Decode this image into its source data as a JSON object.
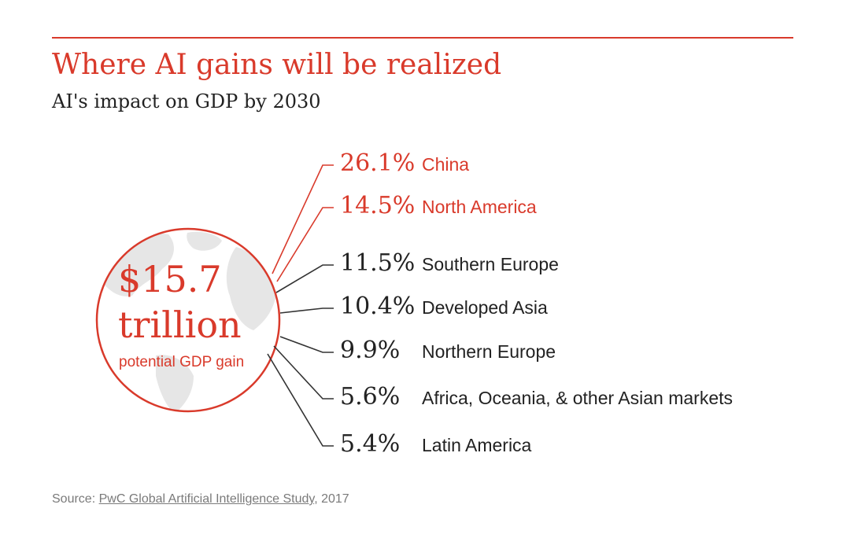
{
  "header": {
    "title": "Where AI gains will be realized",
    "subtitle": "AI's impact on GDP by 2030"
  },
  "globe": {
    "value": "$15.7",
    "unit": "trillion",
    "caption": "potential GDP gain"
  },
  "footer": {
    "prefix": "Source: ",
    "link_text": "PwC Global Artificial Intelligence Study",
    "suffix": ", 2017"
  },
  "colors": {
    "accent": "#d93a2b",
    "dark": "#333333",
    "text": "#222222",
    "muted": "#7a7a7a",
    "globe_land": "#e6e6e6"
  },
  "chart_data": {
    "type": "table",
    "title": "Where AI gains will be realized",
    "subtitle": "AI's impact on GDP by 2030",
    "total": "$15.7 trillion potential GDP gain",
    "categories": [
      "China",
      "North America",
      "Southern Europe",
      "Developed Asia",
      "Northern Europe",
      "Africa, Oceania, & other Asian markets",
      "Latin America"
    ],
    "values": [
      26.1,
      14.5,
      11.5,
      10.4,
      9.9,
      5.6,
      5.4
    ],
    "rows": [
      {
        "value_label": "26.1%",
        "region": "China",
        "highlight": true
      },
      {
        "value_label": "14.5%",
        "region": "North America",
        "highlight": true
      },
      {
        "value_label": "11.5%",
        "region": "Southern Europe",
        "highlight": false
      },
      {
        "value_label": "10.4%",
        "region": "Developed Asia",
        "highlight": false
      },
      {
        "value_label": "9.9%",
        "region": "Northern Europe",
        "highlight": false
      },
      {
        "value_label": "5.6%",
        "region": "Africa, Oceania, & other Asian markets",
        "highlight": false
      },
      {
        "value_label": "5.4%",
        "region": "Latin America",
        "highlight": false
      }
    ],
    "unit": "% of GDP"
  }
}
